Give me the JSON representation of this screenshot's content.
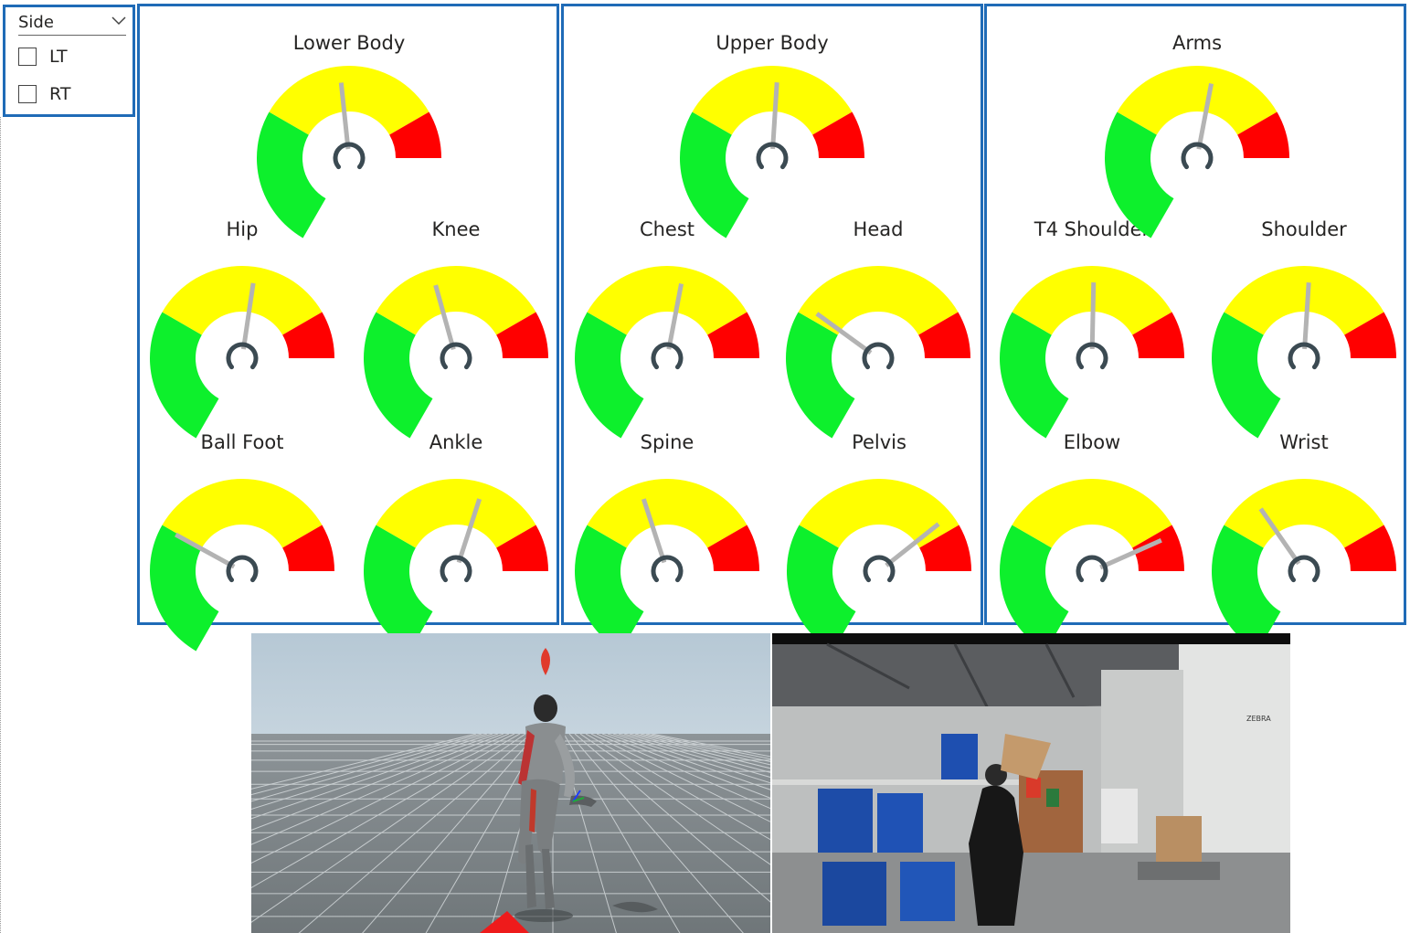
{
  "slicer": {
    "title": "Side",
    "options": [
      {
        "label": "LT",
        "checked": false
      },
      {
        "label": "RT",
        "checked": false
      }
    ]
  },
  "colors": {
    "green": "#0df02c",
    "yellow": "#ffff00",
    "red": "#ff0000",
    "needle": "#b3b3b3",
    "hub": "#3b4a52",
    "border": "#1f6bb7"
  },
  "panels": [
    {
      "title": "Lower Body",
      "main_value": 0.6,
      "gauges": [
        {
          "label": "Hip",
          "value": 0.66
        },
        {
          "label": "Knee",
          "value": 0.56
        },
        {
          "label": "Ball Foot",
          "value": 0.37
        },
        {
          "label": "Ankle",
          "value": 0.7
        }
      ]
    },
    {
      "title": "Upper Body",
      "main_value": 0.64,
      "gauges": [
        {
          "label": "Chest",
          "value": 0.67
        },
        {
          "label": "Head",
          "value": 0.4
        },
        {
          "label": "Spine",
          "value": 0.55
        },
        {
          "label": "Pelvis",
          "value": 0.84
        }
      ]
    },
    {
      "title": "Arms",
      "main_value": 0.67,
      "gauges": [
        {
          "label": "T4 Shoulder",
          "value": 0.63
        },
        {
          "label": "Shoulder",
          "value": 0.64
        },
        {
          "label": "Elbow",
          "value": 0.9
        },
        {
          "label": "Wrist",
          "value": 0.48
        }
      ]
    }
  ],
  "video_frames": {
    "camera_sign_text": "ZEBRA"
  }
}
